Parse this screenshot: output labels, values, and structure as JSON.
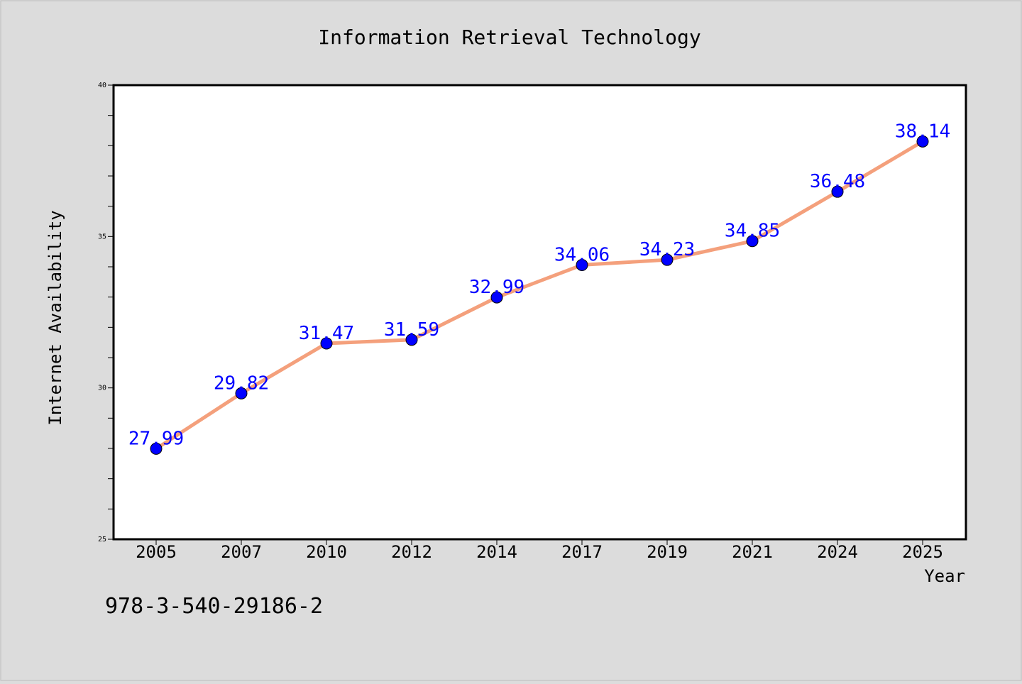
{
  "isbn": "978-3-540-29186-2",
  "chart_data": {
    "type": "line",
    "title": "Information Retrieval Technology",
    "xlabel": "Year",
    "ylabel": "Internet Availability",
    "categories": [
      "2005",
      "2007",
      "2010",
      "2012",
      "2014",
      "2017",
      "2019",
      "2021",
      "2024",
      "2025"
    ],
    "values": [
      27.99,
      29.82,
      31.47,
      31.59,
      32.99,
      34.06,
      34.23,
      34.85,
      36.48,
      38.14
    ],
    "data_labels": [
      "27.99",
      "29.82",
      "31.47",
      "31.59",
      "32.99",
      "34.06",
      "34.23",
      "34.85",
      "36.48",
      "38.14"
    ],
    "ylim": [
      25,
      40
    ],
    "yticks": [
      "25",
      "30",
      "35",
      "40"
    ],
    "grid": false,
    "line_color": "#f4a07c",
    "marker_color": "#0000ff",
    "label_color": "#0000ff"
  }
}
